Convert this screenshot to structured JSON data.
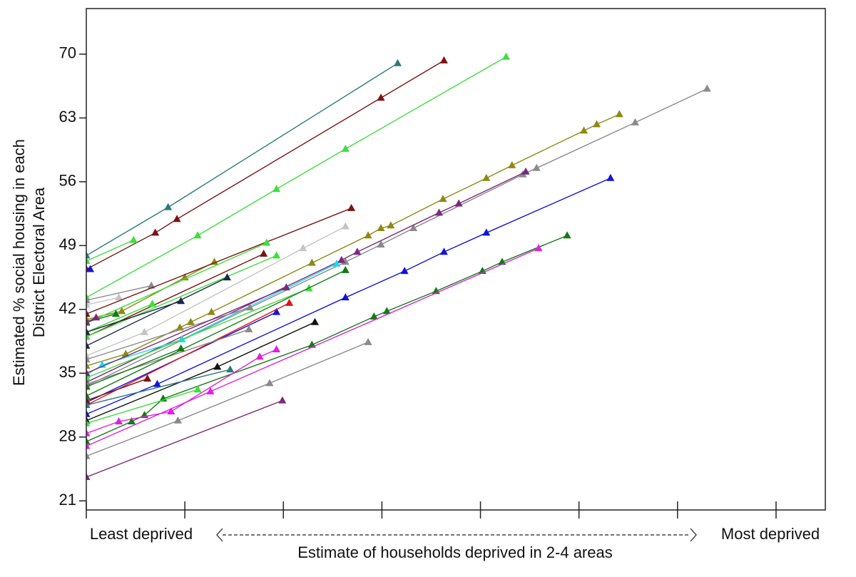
{
  "chart_data": {
    "type": "line",
    "y_label": [
      "Estimated % social housing in each",
      "District Electoral Area"
    ],
    "x_label": "Estimate of households deprived in 2-4 areas",
    "x_left_label": "Least deprived",
    "x_right_label": "Most deprived",
    "xlim": [
      0,
      7.5
    ],
    "xticks": [
      0,
      1,
      2,
      3,
      4,
      5,
      6,
      7
    ],
    "ylim": [
      20,
      75
    ],
    "yticks": [
      21,
      28,
      35,
      42,
      49,
      56,
      63,
      70
    ],
    "marker": "triangle",
    "series": [
      {
        "color": "#2b7b7b",
        "x": [
          0,
          0.83,
          3.16
        ],
        "values": [
          47.9,
          53.2,
          69.0
        ]
      },
      {
        "color": "#7a1414",
        "x": [
          0,
          0.7,
          0.92,
          2.99,
          3.63
        ],
        "values": [
          46.4,
          50.4,
          51.9,
          65.2,
          69.3
        ]
      },
      {
        "color": "#3ede3e",
        "x": [
          0,
          1.13,
          1.93,
          2.63,
          4.26
        ],
        "values": [
          43.3,
          50.1,
          55.2,
          59.6,
          69.7
        ]
      },
      {
        "color": "#8c8a14",
        "x": [
          0,
          0.36,
          1.0,
          1.3
        ],
        "values": [
          40.9,
          41.8,
          45.5,
          47.2
        ]
      },
      {
        "color": "#8c8a14",
        "x": [
          0,
          0.4,
          0.95,
          1.06,
          1.27,
          2.29,
          2.86,
          2.99,
          3.09,
          3.62,
          4.06,
          4.32,
          5.05,
          5.18,
          5.41
        ],
        "values": [
          35.8,
          37.1,
          40.0,
          40.6,
          41.7,
          47.1,
          50.1,
          50.9,
          51.2,
          54.1,
          56.4,
          57.8,
          61.6,
          62.3,
          63.4
        ]
      },
      {
        "color": "#8a8a8a",
        "x": [
          0,
          2.63,
          2.99,
          3.32,
          4.43,
          4.57,
          5.57,
          6.3
        ],
        "values": [
          33.6,
          47.2,
          49.1,
          50.9,
          56.8,
          57.5,
          62.5,
          66.2
        ]
      },
      {
        "color": "#7a2a7a",
        "x": [
          0,
          2.59,
          2.75,
          3.58,
          3.78,
          4.46
        ],
        "values": [
          34.0,
          47.4,
          48.3,
          52.6,
          53.6,
          57.1
        ]
      },
      {
        "color": "#1414d8",
        "x": [
          0,
          0.72,
          2.63,
          3.23,
          3.63,
          4.06,
          5.32
        ],
        "values": [
          30.5,
          33.8,
          43.3,
          46.2,
          48.3,
          50.4,
          56.4
        ]
      },
      {
        "color": "#1414d8",
        "x": [
          0,
          1.93
        ],
        "values": [
          31.8,
          41.7
        ]
      },
      {
        "color": "#1414d8",
        "x": [
          0.04
        ],
        "values": [
          46.4
        ]
      },
      {
        "color": "#147a14",
        "x": [
          0,
          0.46,
          0.59,
          0.78,
          2.29,
          2.92,
          3.05,
          3.55,
          4.02,
          4.22,
          4.88
        ],
        "values": [
          27.5,
          29.7,
          30.4,
          32.2,
          38.1,
          41.2,
          41.8,
          44.0,
          46.2,
          47.2,
          50.1
        ]
      },
      {
        "color": "#e020e0",
        "x": [
          0,
          1.26,
          4.59
        ],
        "values": [
          27.0,
          33.0,
          48.7
        ]
      },
      {
        "color": "#e020e0",
        "x": [
          0,
          0.33,
          0.86,
          1.76,
          1.93
        ],
        "values": [
          28.4,
          29.7,
          30.8,
          36.8,
          37.6
        ]
      },
      {
        "color": "#8a8a8a",
        "x": [
          0,
          0.93,
          1.86,
          2.86
        ],
        "values": [
          25.9,
          29.8,
          33.9,
          38.4
        ]
      },
      {
        "color": "#7a2a7a",
        "x": [
          0,
          1.99
        ],
        "values": [
          23.6,
          32.0
        ]
      },
      {
        "color": "#111111",
        "x": [
          0,
          1.33,
          2.32
        ],
        "values": [
          29.8,
          35.7,
          40.6
        ]
      },
      {
        "color": "#e01414",
        "x": [
          0,
          2.06
        ],
        "values": [
          31.5,
          42.7
        ]
      },
      {
        "color": "#20d8f0",
        "x": [
          0,
          0.16,
          0.97,
          2.54
        ],
        "values": [
          34.8,
          35.9,
          38.7,
          47.0
        ]
      },
      {
        "color": "#c4c4c4",
        "x": [
          0,
          0.59,
          2.2,
          2.63
        ],
        "values": [
          36.9,
          39.5,
          48.7,
          51.1
        ]
      },
      {
        "color": "#c4c4c4",
        "x": [
          0,
          0.33
        ],
        "values": [
          42.5,
          43.3
        ]
      },
      {
        "color": "#8a8a8a",
        "x": [
          0,
          0.66
        ],
        "values": [
          43.0,
          44.6
        ]
      },
      {
        "color": "#8a8a8a",
        "x": [
          0,
          1.66
        ],
        "values": [
          36.5,
          42.2
        ]
      },
      {
        "color": "#8a8a8a",
        "x": [
          0,
          1.65
        ],
        "values": [
          33.8,
          39.8
        ]
      },
      {
        "color": "#7a1414",
        "x": [
          0,
          0.62
        ],
        "values": [
          32.0,
          34.4
        ]
      },
      {
        "color": "#7a1414",
        "x": [
          0,
          1.8
        ],
        "values": [
          39.0,
          48.1
        ]
      },
      {
        "color": "#7a1414",
        "x": [
          0,
          2.69
        ],
        "values": [
          41.5,
          53.1
        ]
      },
      {
        "color": "#3ede3e",
        "x": [
          0,
          0.48
        ],
        "values": [
          47.3,
          49.6
        ]
      },
      {
        "color": "#3ede3e",
        "x": [
          0,
          0.67
        ],
        "values": [
          39.5,
          42.6
        ]
      },
      {
        "color": "#3ede3e",
        "x": [
          0,
          1.83
        ],
        "values": [
          40.5,
          49.3
        ]
      },
      {
        "color": "#3ede3e",
        "x": [
          0,
          1.93
        ],
        "values": [
          39.0,
          47.9
        ]
      },
      {
        "color": "#3ede3e",
        "x": [
          0,
          2.26
        ],
        "values": [
          34.5,
          44.3
        ]
      },
      {
        "color": "#3ede3e",
        "x": [
          0,
          1.13
        ],
        "values": [
          29.5,
          33.2
        ]
      },
      {
        "color": "#1a2a44",
        "x": [
          0,
          0.96
        ],
        "values": [
          39.5,
          42.9
        ]
      },
      {
        "color": "#1a2a44",
        "x": [
          0,
          1.43
        ],
        "values": [
          38.0,
          45.5
        ]
      },
      {
        "color": "#147a14",
        "x": [
          0,
          2.63
        ],
        "values": [
          32.5,
          46.3
        ]
      },
      {
        "color": "#147a14",
        "x": [
          0,
          0.96
        ],
        "values": [
          33.5,
          37.7
        ]
      },
      {
        "color": "#147a14",
        "x": [
          0,
          0.3
        ],
        "values": [
          40.6,
          41.5
        ]
      },
      {
        "color": "#7a2a7a",
        "x": [
          0,
          0.1
        ],
        "values": [
          40.6,
          41.1
        ]
      },
      {
        "color": "#7a2a7a",
        "x": [
          0,
          2.03
        ],
        "values": [
          35.0,
          44.4
        ]
      },
      {
        "color": "#2b7b7b",
        "x": [
          0,
          1.46
        ],
        "values": [
          31.5,
          35.4
        ]
      }
    ]
  }
}
